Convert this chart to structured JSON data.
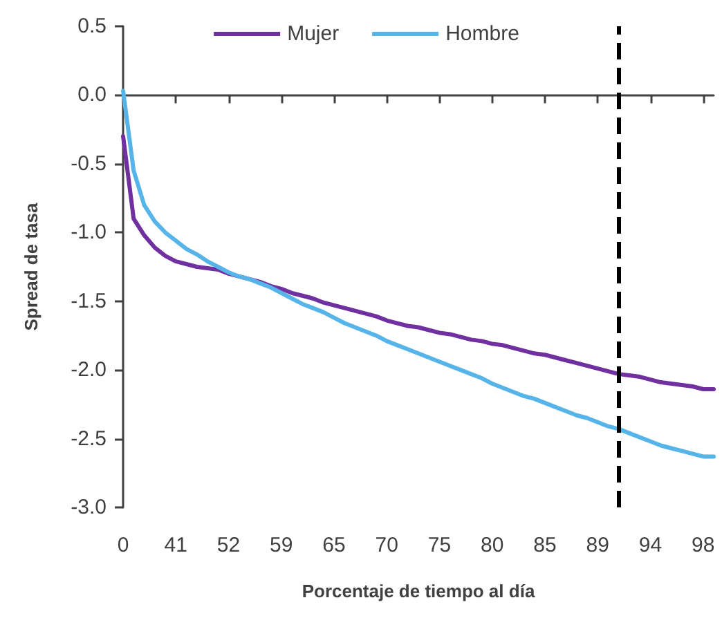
{
  "chart_data": {
    "type": "line",
    "xlabel": "Porcentaje de tiempo al día",
    "ylabel": "Spread de tasa",
    "categories": [
      "0",
      null,
      null,
      null,
      null,
      "41",
      null,
      null,
      null,
      null,
      "52",
      null,
      null,
      null,
      null,
      "59",
      null,
      null,
      null,
      null,
      "65",
      null,
      null,
      null,
      null,
      "70",
      null,
      null,
      null,
      null,
      "75",
      null,
      null,
      null,
      null,
      "80",
      null,
      null,
      null,
      null,
      "85",
      null,
      null,
      null,
      null,
      "89",
      null,
      null,
      null,
      null,
      "94",
      null,
      null,
      null,
      null,
      "98",
      null
    ],
    "ylim": [
      -3,
      0.5
    ],
    "yticks": [
      {
        "value": -3,
        "label": "-3.0"
      },
      -2.5,
      {
        "value": -2,
        "label": "-2.0"
      },
      -1.5,
      {
        "value": -1,
        "label": "-1.0"
      },
      -0.5,
      {
        "value": 0,
        "label": "0.0"
      },
      0.5
    ],
    "series": [
      {
        "name": "Mujer",
        "color": "#7030a0",
        "values": [
          -0.3,
          -0.9,
          -1.02,
          -1.11,
          -1.17,
          -1.21,
          -1.23,
          -1.25,
          -1.26,
          -1.27,
          -1.3,
          -1.32,
          -1.34,
          -1.36,
          -1.39,
          -1.41,
          -1.44,
          -1.46,
          -1.48,
          -1.51,
          -1.53,
          -1.55,
          -1.57,
          -1.59,
          -1.61,
          -1.64,
          -1.66,
          -1.68,
          -1.69,
          -1.71,
          -1.73,
          -1.74,
          -1.76,
          -1.78,
          -1.79,
          -1.81,
          -1.82,
          -1.84,
          -1.86,
          -1.88,
          -1.89,
          -1.91,
          -1.93,
          -1.95,
          -1.97,
          -1.99,
          -2.01,
          -2.03,
          -2.04,
          -2.05,
          -2.07,
          -2.09,
          -2.1,
          -2.11,
          -2.12,
          -2.14,
          -2.14
        ]
      },
      {
        "name": "Hombre",
        "color": "#56b4e9",
        "values": [
          0.03,
          -0.55,
          -0.8,
          -0.92,
          -1.0,
          -1.06,
          -1.12,
          -1.16,
          -1.21,
          -1.25,
          -1.29,
          -1.32,
          -1.34,
          -1.37,
          -1.4,
          -1.44,
          -1.48,
          -1.52,
          -1.55,
          -1.58,
          -1.62,
          -1.66,
          -1.69,
          -1.72,
          -1.75,
          -1.79,
          -1.82,
          -1.85,
          -1.88,
          -1.91,
          -1.94,
          -1.97,
          -2.0,
          -2.03,
          -2.06,
          -2.1,
          -2.13,
          -2.16,
          -2.19,
          -2.21,
          -2.24,
          -2.27,
          -2.3,
          -2.33,
          -2.35,
          -2.38,
          -2.41,
          -2.43,
          -2.46,
          -2.49,
          -2.52,
          -2.55,
          -2.57,
          -2.59,
          -2.61,
          -2.63,
          -2.63
        ]
      }
    ],
    "legend": "top",
    "grid": false,
    "marker": "none",
    "line_style": "solid"
  }
}
